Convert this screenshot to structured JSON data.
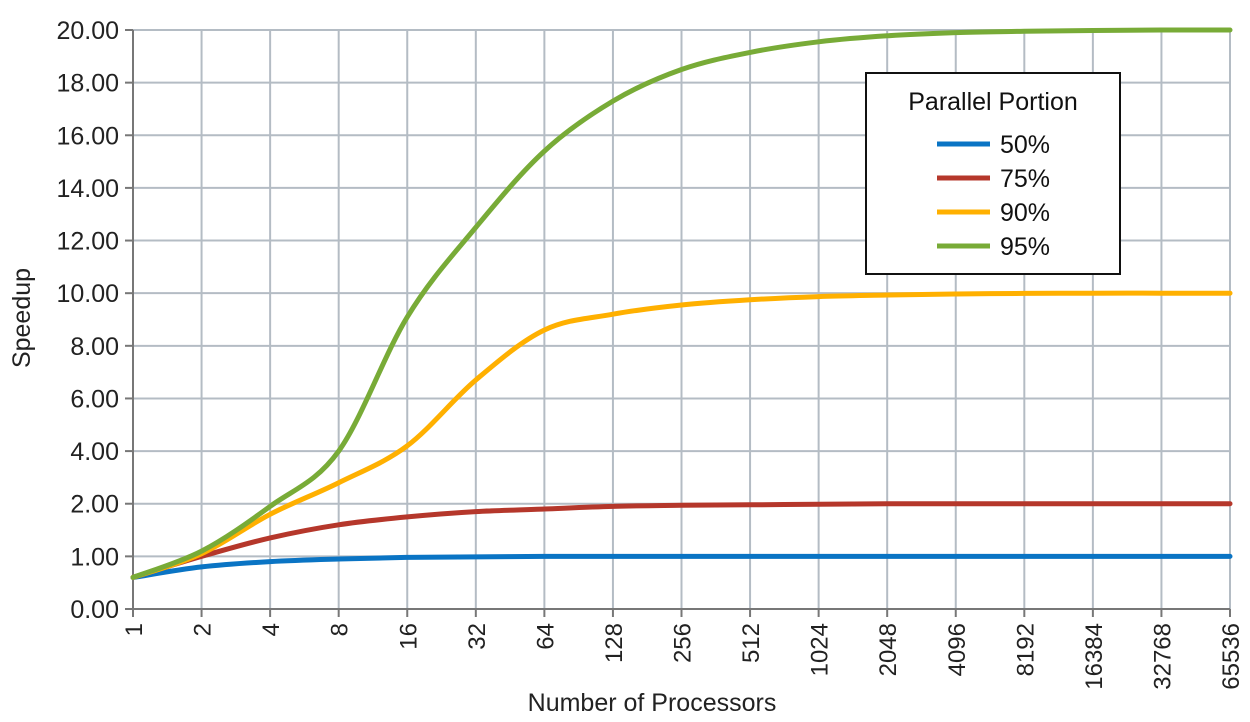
{
  "chart_data": {
    "type": "line",
    "title": "",
    "xlabel": "Number of Processors",
    "ylabel": "Speedup",
    "x_scale": "log2",
    "x": [
      1,
      2,
      4,
      8,
      16,
      32,
      64,
      128,
      256,
      512,
      1024,
      2048,
      4096,
      8192,
      16384,
      32768,
      65536
    ],
    "x_tick_labels": [
      "1",
      "2",
      "4",
      "8",
      "16",
      "32",
      "64",
      "128",
      "256",
      "512",
      "1024",
      "2048",
      "4096",
      "8192",
      "16384",
      "32768",
      "65536"
    ],
    "y_tick_labels": [
      "0.00",
      "1.00",
      "2.00",
      "4.00",
      "6.00",
      "8.00",
      "10.00",
      "12.00",
      "14.00",
      "16.00",
      "18.00",
      "20.00"
    ],
    "y_scale_note": "tick labels are evenly spaced but non-linear at the bottom (0, 1, 2, then steps of 2)",
    "grid": true,
    "legend": {
      "title": "Parallel Portion",
      "placement": "top-right"
    },
    "series": [
      {
        "name": "50%",
        "color": "#0a74c4",
        "values": [
          0.6,
          0.8,
          0.9,
          0.95,
          0.98,
          0.99,
          1.0,
          1.0,
          1.0,
          1.0,
          1.0,
          1.0,
          1.0,
          1.0,
          1.0,
          1.0,
          1.0
        ]
      },
      {
        "name": "75%",
        "color": "#b5372b",
        "values": [
          0.6,
          1.0,
          1.35,
          1.6,
          1.75,
          1.85,
          1.9,
          1.95,
          1.97,
          1.98,
          1.99,
          2.0,
          2.0,
          2.0,
          2.0,
          2.0,
          2.0
        ]
      },
      {
        "name": "90%",
        "color": "#ffb000",
        "values": [
          0.6,
          1.05,
          1.8,
          2.8,
          4.2,
          6.7,
          8.6,
          9.2,
          9.55,
          9.75,
          9.87,
          9.93,
          9.97,
          9.99,
          10.0,
          10.0,
          10.0
        ]
      },
      {
        "name": "95%",
        "color": "#78ab37",
        "values": [
          0.6,
          1.1,
          1.95,
          4.0,
          9.1,
          12.5,
          15.4,
          17.3,
          18.5,
          19.15,
          19.55,
          19.78,
          19.9,
          19.95,
          19.98,
          20.0,
          20.0
        ]
      }
    ]
  }
}
